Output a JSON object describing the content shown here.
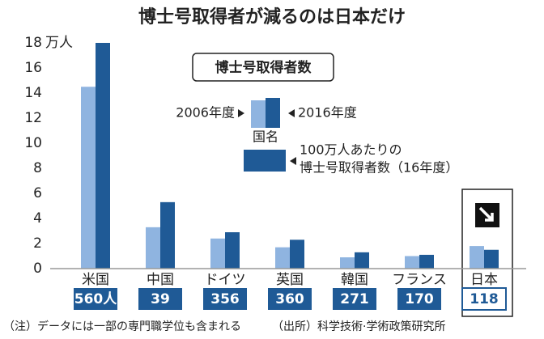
{
  "chart_data": {
    "type": "bar",
    "title": "博士号取得者が減るのは日本だけ",
    "y_unit": "万人",
    "categories": [
      "米国",
      "中国",
      "ドイツ",
      "英国",
      "韓国",
      "フランス",
      "日本"
    ],
    "series": [
      {
        "name": "2006年度",
        "color": "#8fb4e0",
        "values": [
          14.5,
          3.3,
          2.4,
          1.7,
          0.9,
          1.0,
          1.8
        ]
      },
      {
        "name": "2016年度",
        "color": "#1f5a96",
        "values": [
          18.0,
          5.3,
          2.9,
          2.3,
          1.3,
          1.1,
          1.5
        ]
      }
    ],
    "per_million": {
      "name": "100万人あたりの",
      "name_2": "博士号取得者数（16年度）",
      "values": [
        560,
        39,
        356,
        360,
        271,
        170,
        118
      ],
      "value_labels": [
        "560人",
        "39",
        "356",
        "360",
        "271",
        "170",
        "118"
      ]
    },
    "legend_title": "博士号取得者数",
    "legend_category": "国名",
    "ylim": [
      0,
      18
    ],
    "yticks": [
      0,
      2,
      4,
      6,
      8,
      10,
      12,
      14,
      16,
      18
    ],
    "grid": false,
    "note": "（注）データには一部の専門職学位も含まれる",
    "source": "（出所）科学技術·学術政策研究所"
  }
}
